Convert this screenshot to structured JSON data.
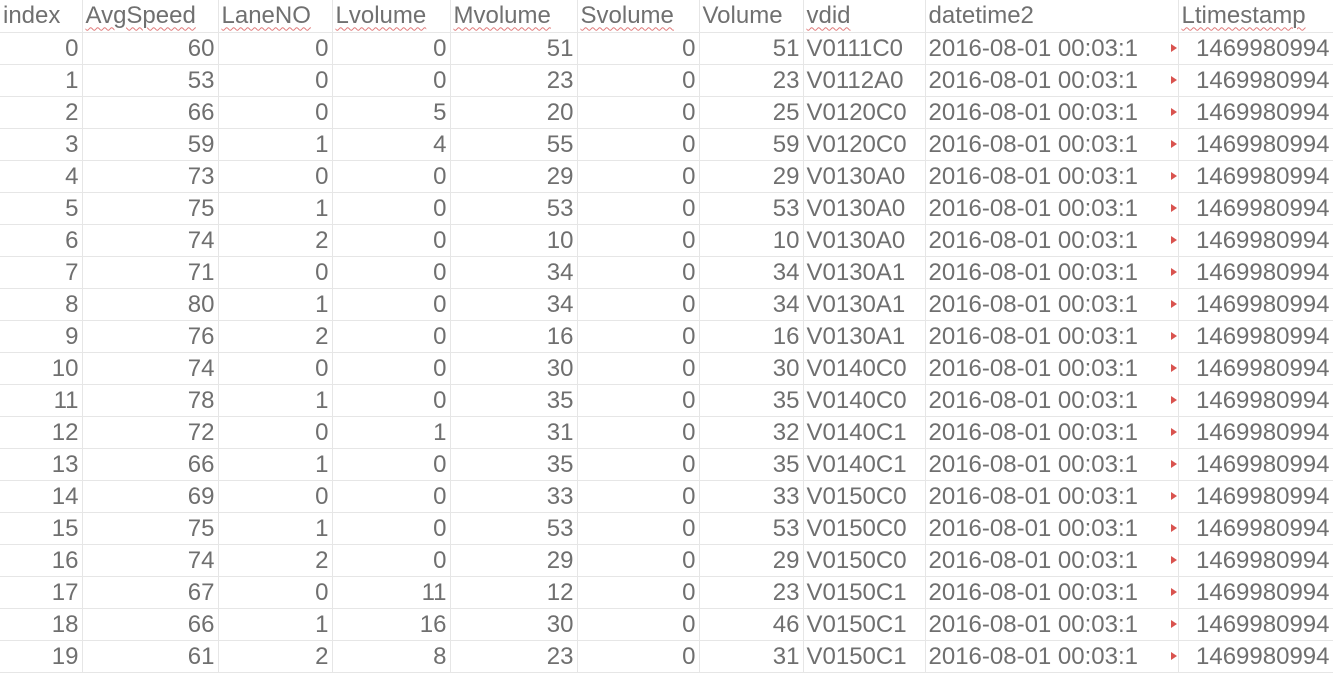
{
  "sheet": {
    "columns": [
      "index",
      "AvgSpeed",
      "LaneNO",
      "Lvolume",
      "Mvolume",
      "Svolume",
      "Volume",
      "vdid",
      "datetime2",
      "Ltimestamp"
    ],
    "spellcheck_flagged": [
      "AvgSpeed",
      "LaneNO",
      "Lvolume",
      "Mvolume",
      "Svolume",
      "vdid",
      "Ltimestamp"
    ],
    "truncated_columns": [
      "datetime2"
    ],
    "colors": {
      "text": "#6f6f6f",
      "grid": "#e6e6e6",
      "spellcheck": "#e07b7b",
      "overflow_marker": "#d9534f"
    },
    "rows": [
      [
        "0",
        "60",
        "0",
        "0",
        "51",
        "0",
        "51",
        "V0111C0",
        "2016-08-01 00:03:1",
        "1469980994"
      ],
      [
        "1",
        "53",
        "0",
        "0",
        "23",
        "0",
        "23",
        "V0112A0",
        "2016-08-01 00:03:1",
        "1469980994"
      ],
      [
        "2",
        "66",
        "0",
        "5",
        "20",
        "0",
        "25",
        "V0120C0",
        "2016-08-01 00:03:1",
        "1469980994"
      ],
      [
        "3",
        "59",
        "1",
        "4",
        "55",
        "0",
        "59",
        "V0120C0",
        "2016-08-01 00:03:1",
        "1469980994"
      ],
      [
        "4",
        "73",
        "0",
        "0",
        "29",
        "0",
        "29",
        "V0130A0",
        "2016-08-01 00:03:1",
        "1469980994"
      ],
      [
        "5",
        "75",
        "1",
        "0",
        "53",
        "0",
        "53",
        "V0130A0",
        "2016-08-01 00:03:1",
        "1469980994"
      ],
      [
        "6",
        "74",
        "2",
        "0",
        "10",
        "0",
        "10",
        "V0130A0",
        "2016-08-01 00:03:1",
        "1469980994"
      ],
      [
        "7",
        "71",
        "0",
        "0",
        "34",
        "0",
        "34",
        "V0130A1",
        "2016-08-01 00:03:1",
        "1469980994"
      ],
      [
        "8",
        "80",
        "1",
        "0",
        "34",
        "0",
        "34",
        "V0130A1",
        "2016-08-01 00:03:1",
        "1469980994"
      ],
      [
        "9",
        "76",
        "2",
        "0",
        "16",
        "0",
        "16",
        "V0130A1",
        "2016-08-01 00:03:1",
        "1469980994"
      ],
      [
        "10",
        "74",
        "0",
        "0",
        "30",
        "0",
        "30",
        "V0140C0",
        "2016-08-01 00:03:1",
        "1469980994"
      ],
      [
        "11",
        "78",
        "1",
        "0",
        "35",
        "0",
        "35",
        "V0140C0",
        "2016-08-01 00:03:1",
        "1469980994"
      ],
      [
        "12",
        "72",
        "0",
        "1",
        "31",
        "0",
        "32",
        "V0140C1",
        "2016-08-01 00:03:1",
        "1469980994"
      ],
      [
        "13",
        "66",
        "1",
        "0",
        "35",
        "0",
        "35",
        "V0140C1",
        "2016-08-01 00:03:1",
        "1469980994"
      ],
      [
        "14",
        "69",
        "0",
        "0",
        "33",
        "0",
        "33",
        "V0150C0",
        "2016-08-01 00:03:1",
        "1469980994"
      ],
      [
        "15",
        "75",
        "1",
        "0",
        "53",
        "0",
        "53",
        "V0150C0",
        "2016-08-01 00:03:1",
        "1469980994"
      ],
      [
        "16",
        "74",
        "2",
        "0",
        "29",
        "0",
        "29",
        "V0150C0",
        "2016-08-01 00:03:1",
        "1469980994"
      ],
      [
        "17",
        "67",
        "0",
        "11",
        "12",
        "0",
        "23",
        "V0150C1",
        "2016-08-01 00:03:1",
        "1469980994"
      ],
      [
        "18",
        "66",
        "1",
        "16",
        "30",
        "0",
        "46",
        "V0150C1",
        "2016-08-01 00:03:1",
        "1469980994"
      ],
      [
        "19",
        "61",
        "2",
        "8",
        "23",
        "0",
        "31",
        "V0150C1",
        "2016-08-01 00:03:1",
        "1469980994"
      ]
    ]
  }
}
